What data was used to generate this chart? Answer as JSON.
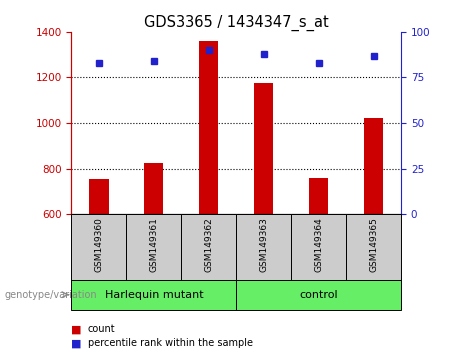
{
  "title": "GDS3365 / 1434347_s_at",
  "samples": [
    "GSM149360",
    "GSM149361",
    "GSM149362",
    "GSM149363",
    "GSM149364",
    "GSM149365"
  ],
  "counts": [
    755,
    825,
    1360,
    1175,
    760,
    1020
  ],
  "percentile_ranks": [
    83,
    84,
    90,
    88,
    83,
    87
  ],
  "ylim_left": [
    600,
    1400
  ],
  "ylim_right": [
    0,
    100
  ],
  "yticks_left": [
    600,
    800,
    1000,
    1200,
    1400
  ],
  "yticks_right": [
    0,
    25,
    50,
    75,
    100
  ],
  "bar_color": "#cc0000",
  "dot_color": "#2222cc",
  "groups": [
    {
      "label": "Harlequin mutant",
      "span": [
        0,
        2
      ]
    },
    {
      "label": "control",
      "span": [
        3,
        5
      ]
    }
  ],
  "group_bg_color": "#66ee66",
  "sample_bg_color": "#cccccc",
  "group_label_text": "genotype/variation",
  "legend_count_color": "#cc0000",
  "legend_pct_color": "#2222cc",
  "bar_width": 0.35
}
